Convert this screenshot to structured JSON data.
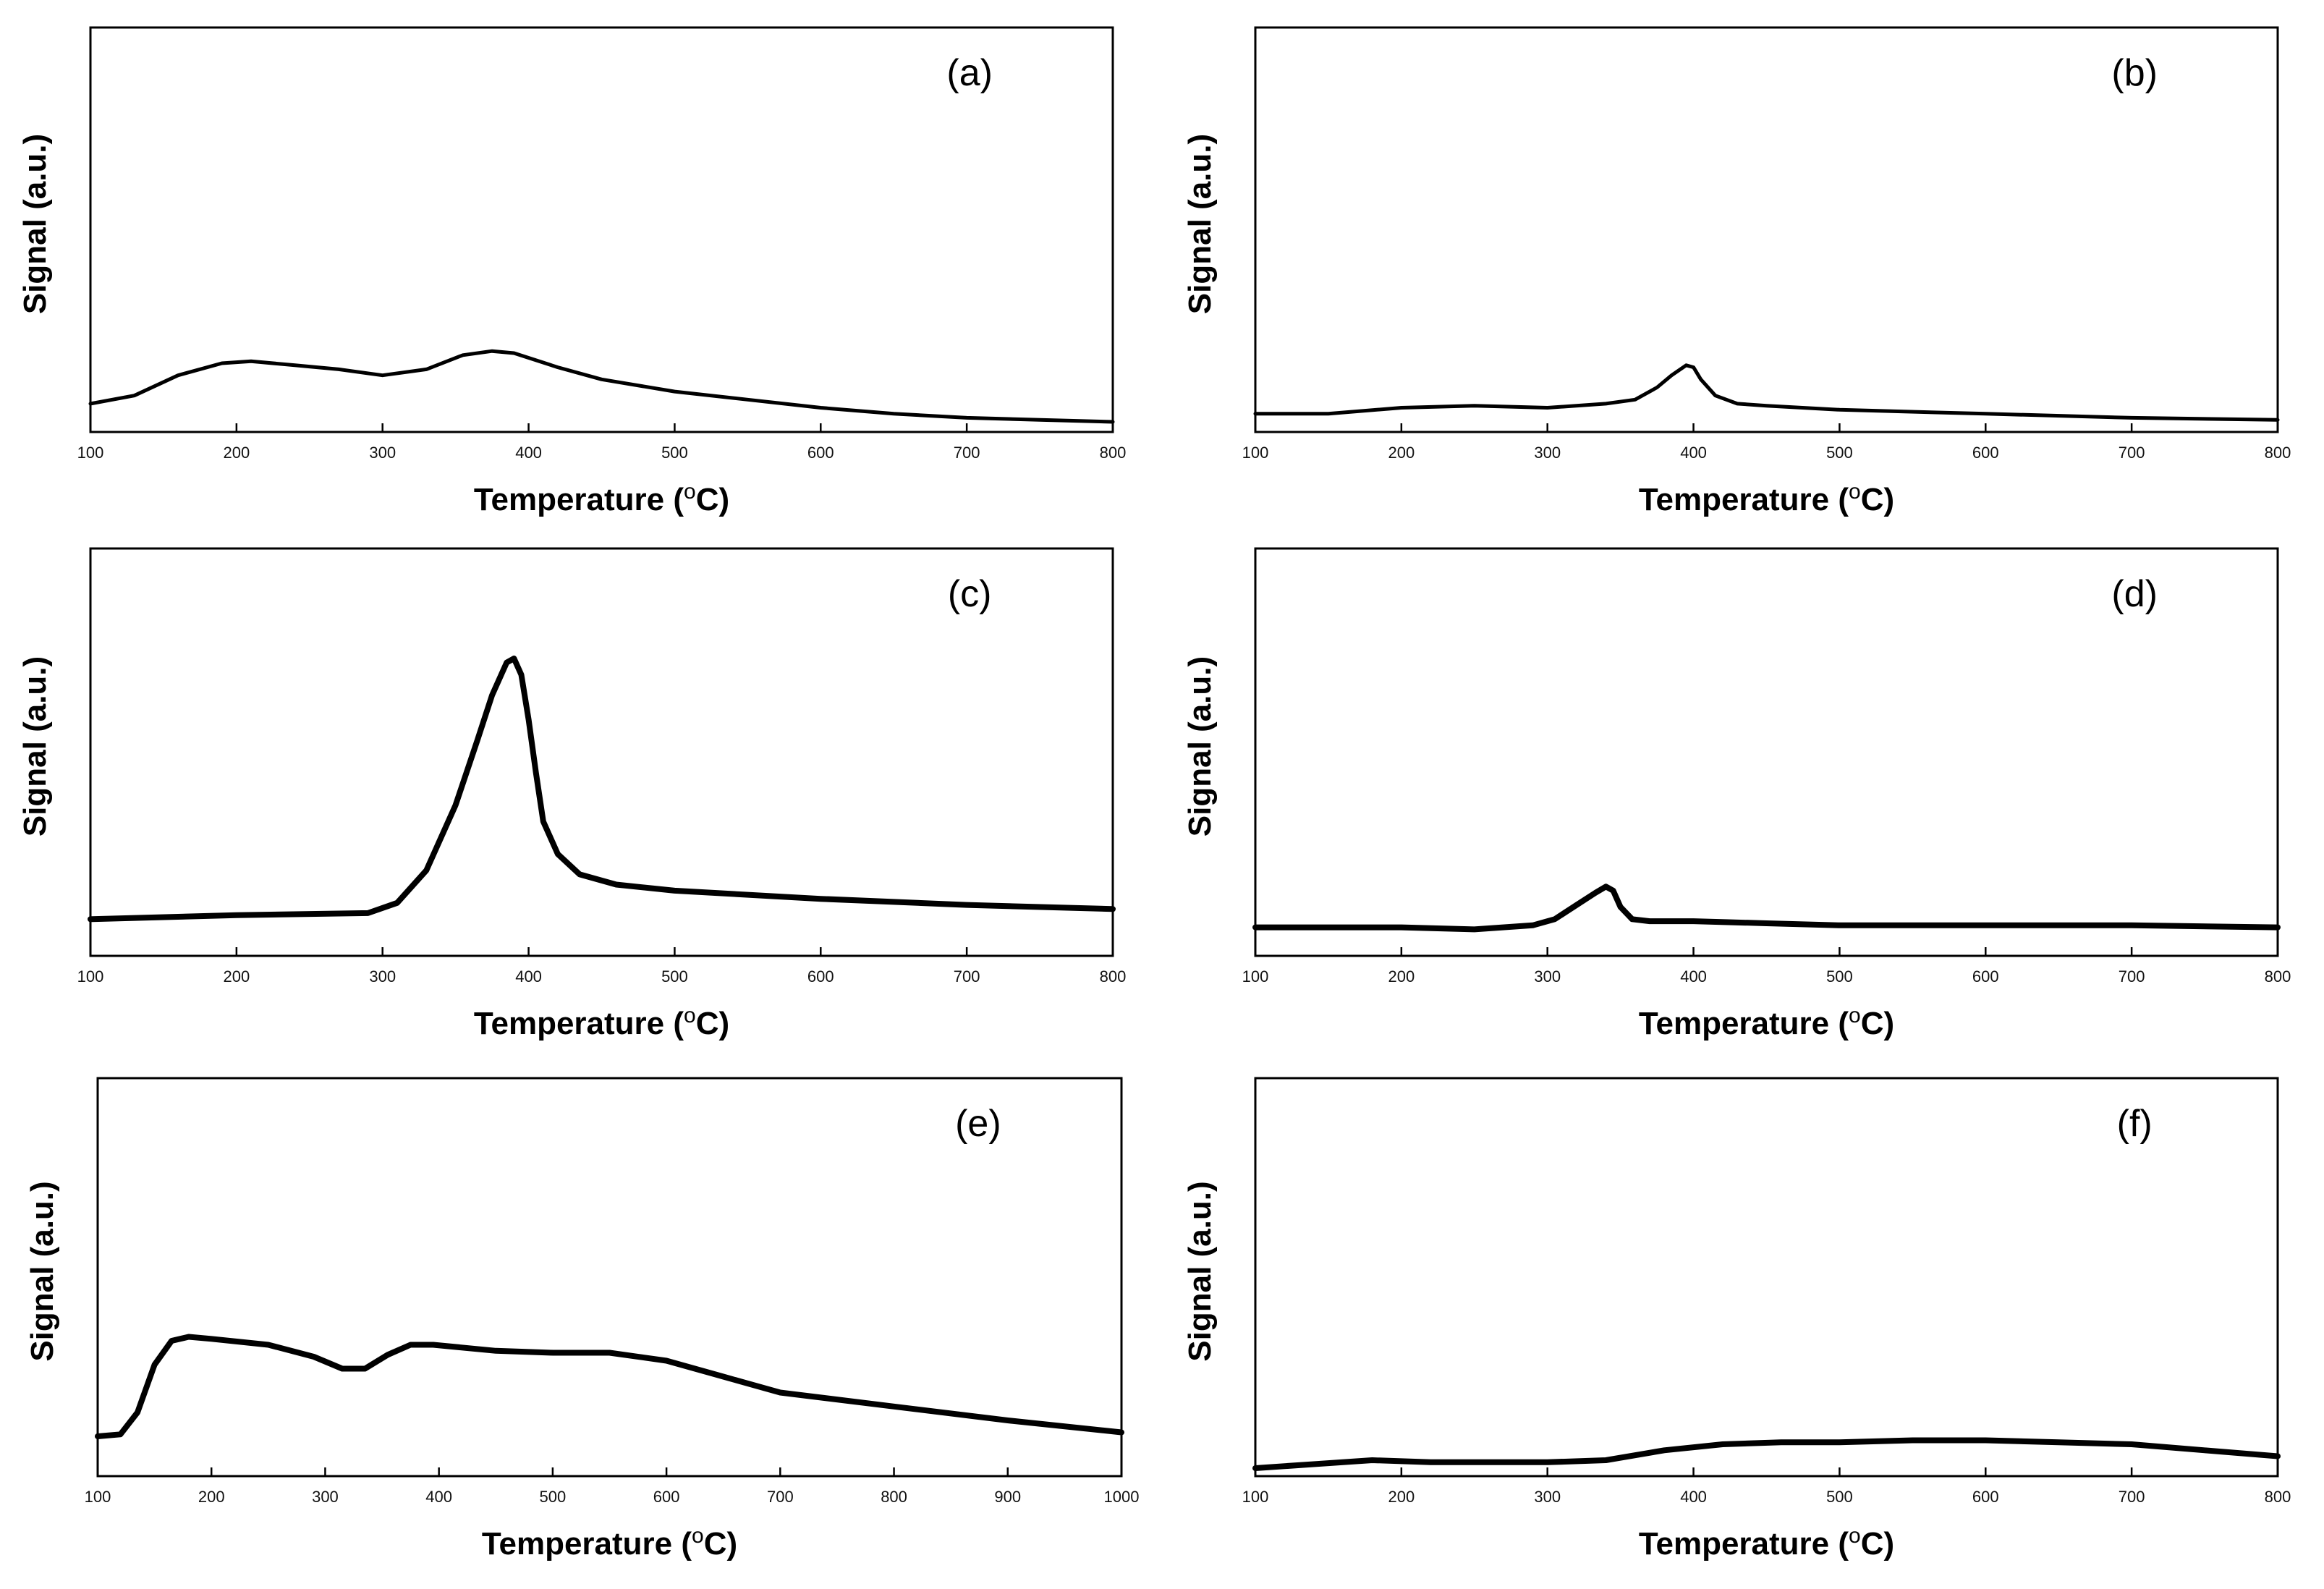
{
  "chart_data": [
    {
      "type": "line",
      "panel_label": "(a)",
      "xlabel": "Temperature (",
      "xlabel_sup": "o",
      "xlabel_unit": "C)",
      "ylabel": "Signal (a.u.)",
      "xlim": [
        100,
        800
      ],
      "ylim": [
        0,
        100
      ],
      "xticks": [
        100,
        200,
        300,
        400,
        500,
        600,
        700,
        800
      ],
      "series": [
        {
          "name": "a",
          "x": [
            100,
            130,
            160,
            190,
            210,
            240,
            270,
            300,
            330,
            355,
            375,
            390,
            420,
            450,
            500,
            550,
            600,
            650,
            700,
            750,
            800
          ],
          "y": [
            7,
            9,
            14,
            17,
            17.5,
            16.5,
            15.5,
            14,
            15.5,
            19,
            20,
            19.5,
            16,
            13,
            10,
            8,
            6,
            4.5,
            3.5,
            3,
            2.5
          ]
        }
      ]
    },
    {
      "type": "line",
      "panel_label": "(b)",
      "xlabel": "Temperature (",
      "xlabel_sup": "o",
      "xlabel_unit": "C)",
      "ylabel": "Signal (a.u.)",
      "xlim": [
        100,
        800
      ],
      "ylim": [
        0,
        100
      ],
      "xticks": [
        100,
        200,
        300,
        400,
        500,
        600,
        700,
        800
      ],
      "series": [
        {
          "name": "b",
          "x": [
            100,
            150,
            200,
            250,
            300,
            340,
            360,
            375,
            385,
            395,
            400,
            405,
            415,
            430,
            450,
            500,
            600,
            700,
            800
          ],
          "y": [
            4.5,
            4.5,
            6,
            6.5,
            6,
            7,
            8,
            11,
            14,
            16.5,
            16,
            13,
            9,
            7,
            6.5,
            5.5,
            4.5,
            3.5,
            3
          ]
        }
      ]
    },
    {
      "type": "line",
      "panel_label": "(c)",
      "xlabel": "Temperature (",
      "xlabel_sup": "o",
      "xlabel_unit": "C)",
      "ylabel": "Signal (a.u.)",
      "xlim": [
        100,
        800
      ],
      "ylim": [
        0,
        100
      ],
      "xticks": [
        100,
        200,
        300,
        400,
        500,
        600,
        700,
        800
      ],
      "series": [
        {
          "name": "c",
          "x": [
            100,
            200,
            290,
            310,
            330,
            350,
            365,
            375,
            385,
            390,
            395,
            400,
            405,
            410,
            420,
            435,
            460,
            500,
            600,
            700,
            800
          ],
          "y": [
            9,
            10,
            10.5,
            13,
            21,
            37,
            53,
            64,
            72,
            73,
            69,
            58,
            45,
            33,
            25,
            20,
            17.5,
            16,
            14,
            12.5,
            11.5
          ]
        }
      ]
    },
    {
      "type": "line",
      "panel_label": "(d)",
      "xlabel": "Temperature (",
      "xlabel_sup": "o",
      "xlabel_unit": "C)",
      "ylabel": "Signal (a.u.)",
      "xlim": [
        100,
        800
      ],
      "ylim": [
        0,
        100
      ],
      "xticks": [
        100,
        200,
        300,
        400,
        500,
        600,
        700,
        800
      ],
      "series": [
        {
          "name": "d",
          "x": [
            100,
            200,
            250,
            290,
            305,
            320,
            333,
            340,
            345,
            350,
            358,
            370,
            400,
            450,
            500,
            600,
            700,
            800
          ],
          "y": [
            7,
            7,
            6.5,
            7.5,
            9,
            12.5,
            15.5,
            17,
            16,
            12,
            9,
            8.5,
            8.5,
            8,
            7.5,
            7.5,
            7.5,
            7
          ]
        }
      ]
    },
    {
      "type": "line",
      "panel_label": "(e)",
      "xlabel": "Temperature (",
      "xlabel_sup": "o",
      "xlabel_unit": "C)",
      "ylabel": "Signal (a.u.)",
      "xlim": [
        100,
        1000
      ],
      "ylim": [
        0,
        100
      ],
      "xticks": [
        100,
        200,
        300,
        400,
        500,
        600,
        700,
        800,
        900,
        1000
      ],
      "series": [
        {
          "name": "e",
          "x": [
            100,
            120,
            135,
            150,
            165,
            180,
            200,
            250,
            290,
            315,
            335,
            355,
            375,
            395,
            450,
            500,
            550,
            600,
            650,
            700,
            800,
            900,
            1000
          ],
          "y": [
            10,
            10.5,
            16,
            28,
            34,
            35,
            34.5,
            33,
            30,
            27,
            27,
            30.5,
            33,
            33,
            31.5,
            31,
            31,
            29,
            25,
            21,
            17.5,
            14,
            11
          ]
        }
      ]
    },
    {
      "type": "line",
      "panel_label": "(f)",
      "xlabel": "Temperature (",
      "xlabel_sup": "o",
      "xlabel_unit": "C)",
      "ylabel": "Signal (a.u.)",
      "xlim": [
        100,
        800
      ],
      "ylim": [
        0,
        100
      ],
      "xticks": [
        100,
        200,
        300,
        400,
        500,
        600,
        700,
        800
      ],
      "series": [
        {
          "name": "f",
          "x": [
            100,
            140,
            180,
            220,
            260,
            300,
            340,
            380,
            420,
            460,
            500,
            550,
            600,
            650,
            700,
            750,
            800
          ],
          "y": [
            2,
            3,
            4,
            3.5,
            3.5,
            3.5,
            4,
            6.5,
            8,
            8.5,
            8.5,
            9,
            9,
            8.5,
            8,
            6.5,
            5
          ]
        }
      ]
    }
  ]
}
